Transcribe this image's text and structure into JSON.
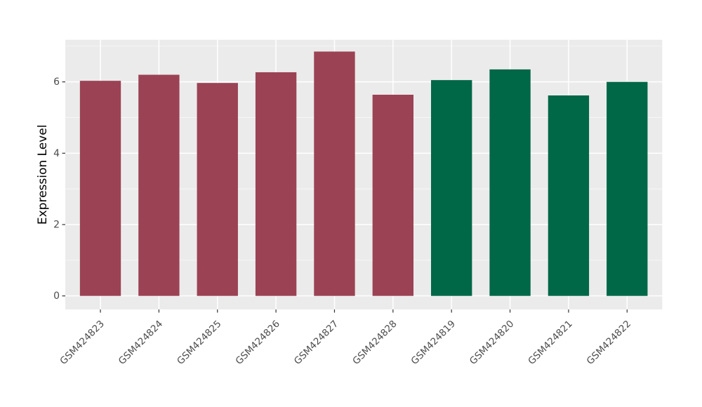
{
  "figure": {
    "background": "#FFFFFF",
    "panel_background": "#EBEBEB",
    "grid_major_color": "#FFFFFF",
    "grid_minor_color": "#FFFFFF",
    "tick_mark_color": "#333333",
    "axis_text_color": "#4D4D4D",
    "axis_title_color": "#000000"
  },
  "chart_data": {
    "type": "bar",
    "title": "",
    "xlabel": "",
    "ylabel": "Expression Level",
    "categories": [
      "GSM424823",
      "GSM424824",
      "GSM424825",
      "GSM424826",
      "GSM424827",
      "GSM424828",
      "GSM424819",
      "GSM424820",
      "GSM424821",
      "GSM424822"
    ],
    "values": [
      6.03,
      6.2,
      5.97,
      6.27,
      6.85,
      5.64,
      6.05,
      6.35,
      5.62,
      6.0
    ],
    "bar_colors": [
      "#9B4254",
      "#9B4254",
      "#9B4254",
      "#9B4254",
      "#9B4254",
      "#9B4254",
      "#006747",
      "#006747",
      "#006747",
      "#006747"
    ],
    "group_colors": {
      "left_group": "#9B4254",
      "right_group": "#006747"
    },
    "yticks": [
      0,
      2,
      4,
      6
    ],
    "ytick_labels": [
      "0",
      "2",
      "4",
      "6"
    ],
    "minor_yticks": [
      1,
      3,
      5,
      7
    ],
    "ylim": [
      -0.38,
      7.18
    ],
    "grid": "on",
    "legend_position": "none",
    "x_tick_rotation": 45,
    "bar_relative_width": 0.7
  }
}
